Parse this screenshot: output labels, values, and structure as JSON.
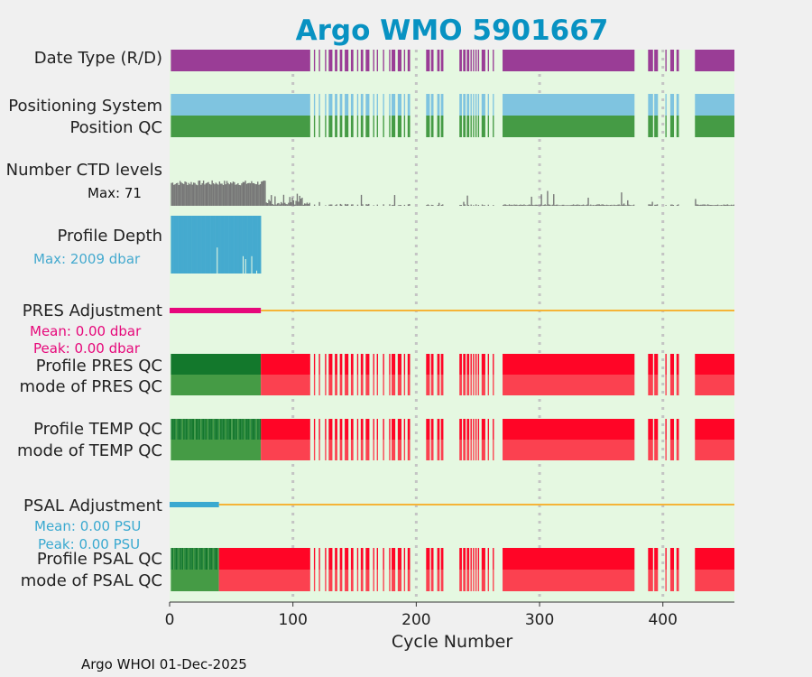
{
  "chart_data": {
    "type": "bar",
    "title": "Argo WMO 5901667",
    "xlabel": "Cycle Number",
    "xlim": [
      0,
      458
    ],
    "xticks": [
      "0",
      "100",
      "200",
      "300",
      "400"
    ],
    "xtick_values": [
      0,
      100,
      200,
      300,
      400
    ],
    "footer": "Argo WHOI 01-Dec-2025",
    "rows": {
      "date_type": "Date Type (R/D)",
      "positioning_system": "Positioning System",
      "position_qc": "Position QC",
      "ctd_levels": "Number CTD levels",
      "ctd_max": "Max: 71",
      "profile_depth": "Profile Depth",
      "depth_max": "Max: 2009 dbar",
      "pres_adjustment": "PRES Adjustment",
      "pres_mean": "Mean: 0.00 dbar",
      "pres_peak": "Peak: 0.00 dbar",
      "pres_qc": "Profile PRES QC",
      "pres_mode": "mode of PRES QC",
      "temp_qc": "Profile TEMP QC",
      "temp_mode": "mode of TEMP QC",
      "psal_adjustment": "PSAL Adjustment",
      "psal_mean": "Mean: 0.00 PSU",
      "psal_peak": "Peak: 0.00 PSU",
      "psal_qc": "Profile PSAL QC",
      "psal_mode": "mode of PSAL QC"
    },
    "present_cycles": [
      [
        1,
        114
      ],
      [
        117,
        118
      ],
      [
        121,
        122
      ],
      [
        126,
        127
      ],
      [
        129,
        132
      ],
      [
        134,
        136
      ],
      [
        138,
        140
      ],
      [
        142,
        145
      ],
      [
        147,
        149
      ],
      [
        152,
        153
      ],
      [
        155,
        157
      ],
      [
        159,
        162
      ],
      [
        165,
        166
      ],
      [
        168,
        169
      ],
      [
        173,
        174
      ],
      [
        178,
        179
      ],
      [
        180,
        183
      ],
      [
        185,
        188
      ],
      [
        190,
        191
      ],
      [
        193,
        195
      ],
      [
        208,
        211
      ],
      [
        212,
        214
      ],
      [
        217,
        219
      ],
      [
        220,
        222
      ],
      [
        235,
        237
      ],
      [
        238,
        240
      ],
      [
        241,
        243
      ],
      [
        244,
        245
      ],
      [
        246,
        247
      ],
      [
        248,
        249
      ],
      [
        250,
        251
      ],
      [
        253,
        256
      ],
      [
        258,
        259
      ],
      [
        262,
        263
      ],
      [
        270,
        377
      ],
      [
        388,
        392
      ],
      [
        393,
        396
      ],
      [
        402,
        403
      ],
      [
        406,
        409
      ],
      [
        411,
        413
      ],
      [
        426,
        458
      ]
    ],
    "pres_good_until": 74,
    "psal_good_until": 40,
    "pres_adj_extent": 74,
    "psal_adj_extent": 40,
    "ctd_levels_max": 71,
    "depth_max_dbar": 2009,
    "colors": {
      "date_type": "#9a3d96",
      "positioning": "#7fc4e0",
      "good_dark": "#13782c",
      "good": "#459b45",
      "bad_dark": "#ff0526",
      "bad": "#fb4150",
      "ctd": "#767676",
      "depth": "#45aacf",
      "pres_adj": "#e6087a",
      "psal_adj": "#3aa9d0",
      "zero_line": "#f5b437",
      "title": "#0892c2",
      "plot_bg": "#e5f8e1",
      "grid": "#c4c4c4"
    }
  }
}
